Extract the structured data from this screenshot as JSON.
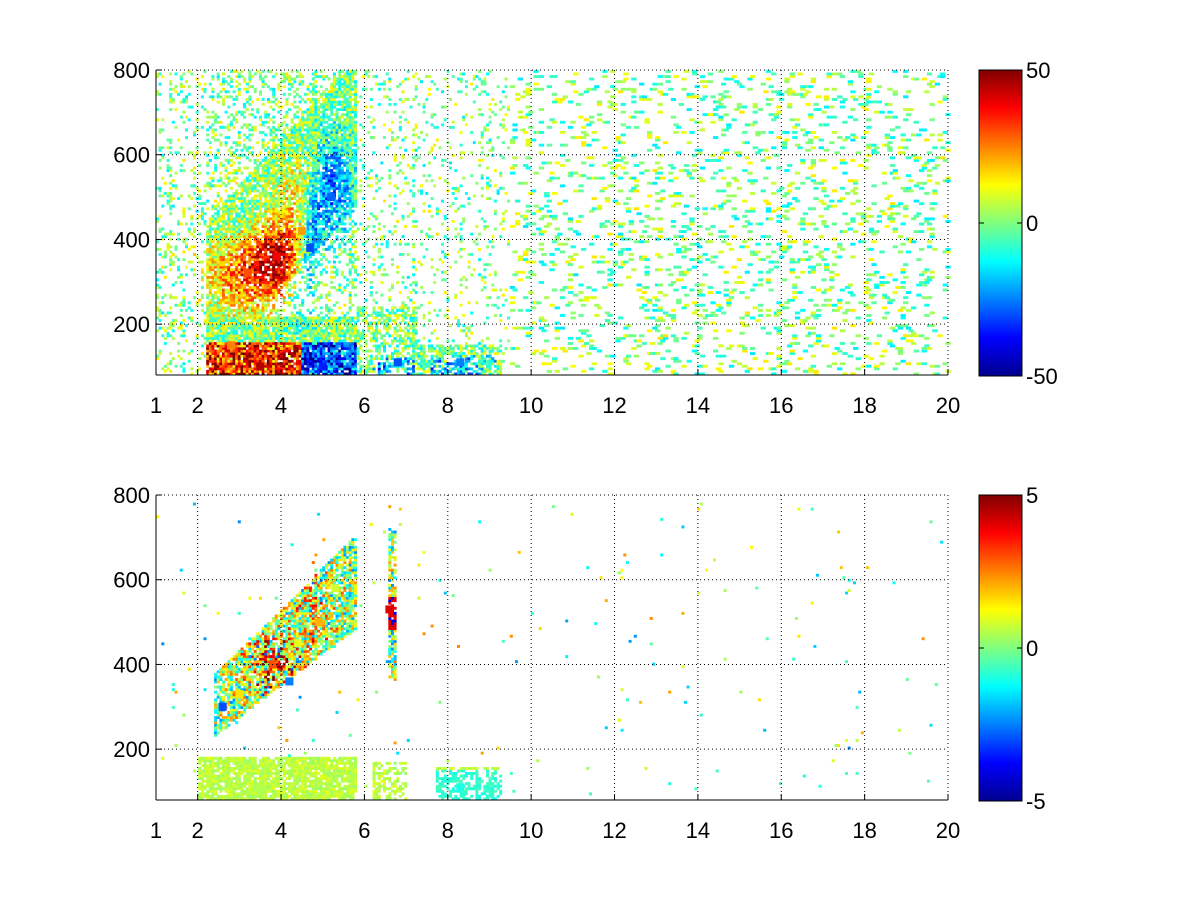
{
  "chart_data": [
    {
      "type": "heatmap",
      "title": "",
      "xlabel": "",
      "ylabel": "",
      "xlim": [
        1,
        20
      ],
      "ylim": [
        80,
        800
      ],
      "x_ticks": [
        1,
        2,
        4,
        6,
        8,
        10,
        12,
        14,
        16,
        18,
        20
      ],
      "x_tick_labels": [
        "1",
        "2",
        "4",
        "6",
        "8",
        "10",
        "12",
        "14",
        "16",
        "18",
        "20"
      ],
      "y_ticks": [
        200,
        400,
        600,
        800
      ],
      "y_tick_labels": [
        "200",
        "400",
        "600",
        "800"
      ],
      "grid": true,
      "colormap": "jet",
      "clim": [
        -50,
        50
      ],
      "colorbar_ticks": [
        50,
        0,
        -50
      ],
      "colorbar_tick_labels": [
        "50",
        "0",
        "-50"
      ],
      "features": [
        {
          "x": 3.2,
          "y": 320,
          "value": 30
        },
        {
          "x": 3.9,
          "y": 360,
          "value": 38
        },
        {
          "x": 4.5,
          "y": 420,
          "value": 22
        },
        {
          "x": 4.7,
          "y": 380,
          "value": -30
        },
        {
          "x": 5.2,
          "y": 500,
          "value": -28
        },
        {
          "x": 3.5,
          "y": 100,
          "value": 45
        },
        {
          "x": 5.0,
          "y": 100,
          "value": -35
        },
        {
          "x": 6.8,
          "y": 110,
          "value": -30
        },
        {
          "x": 8.3,
          "y": 110,
          "value": -25
        },
        {
          "x": 2.8,
          "y": 150,
          "value": 25
        }
      ]
    },
    {
      "type": "heatmap",
      "title": "",
      "xlabel": "",
      "ylabel": "",
      "xlim": [
        1,
        20
      ],
      "ylim": [
        80,
        800
      ],
      "x_ticks": [
        1,
        2,
        4,
        6,
        8,
        10,
        12,
        14,
        16,
        18,
        20
      ],
      "x_tick_labels": [
        "1",
        "2",
        "4",
        "6",
        "8",
        "10",
        "12",
        "14",
        "16",
        "18",
        "20"
      ],
      "y_ticks": [
        200,
        400,
        600,
        800
      ],
      "y_tick_labels": [
        "200",
        "400",
        "600",
        "800"
      ],
      "grid": true,
      "colormap": "jet",
      "clim": [
        -5,
        5
      ],
      "colorbar_ticks": [
        5,
        0,
        -5
      ],
      "colorbar_tick_labels": [
        "5",
        "0",
        "-5"
      ],
      "features": [
        {
          "x": 3.0,
          "y": 330,
          "value": 1.5
        },
        {
          "x": 3.8,
          "y": 400,
          "value": 3.0
        },
        {
          "x": 4.4,
          "y": 450,
          "value": 1.0
        },
        {
          "x": 4.9,
          "y": 500,
          "value": 2.0
        },
        {
          "x": 5.3,
          "y": 580,
          "value": 0.8
        },
        {
          "x": 2.6,
          "y": 300,
          "value": -3.0
        },
        {
          "x": 4.2,
          "y": 360,
          "value": -2.5
        },
        {
          "x": 6.6,
          "y": 530,
          "value": 4.0
        },
        {
          "x": 3.5,
          "y": 110,
          "value": 0.5
        },
        {
          "x": 8.3,
          "y": 110,
          "value": -1.0
        }
      ]
    }
  ]
}
